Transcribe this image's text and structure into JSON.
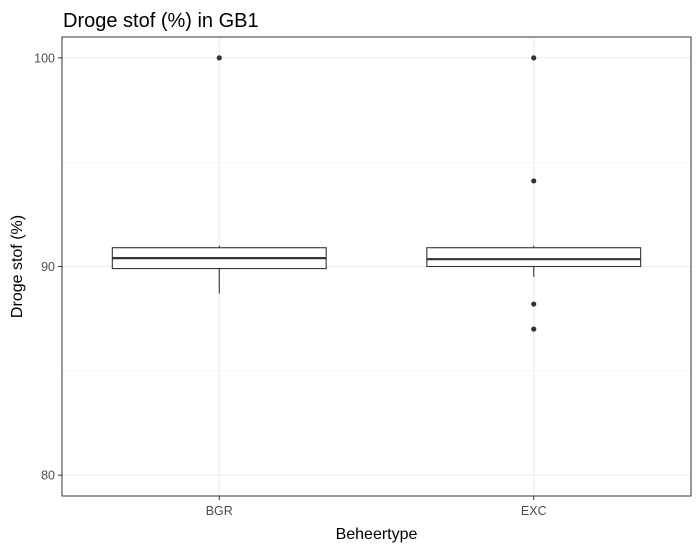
{
  "chart_data": {
    "type": "boxplot",
    "title": "Droge stof (%) in GB1",
    "xlabel": "Beheertype",
    "ylabel": "Droge stof (%)",
    "ylim": [
      79,
      101
    ],
    "yticks": [
      80,
      90,
      100
    ],
    "y_minor_ticks": [
      85,
      95
    ],
    "grid": true,
    "categories": [
      "BGR",
      "EXC"
    ],
    "boxes": [
      {
        "category": "BGR",
        "whisker_low": 88.7,
        "q1": 89.9,
        "median": 90.4,
        "q3": 90.9,
        "whisker_high": 91.0,
        "outliers": [
          100
        ]
      },
      {
        "category": "EXC",
        "whisker_low": 89.5,
        "q1": 90.0,
        "median": 90.35,
        "q3": 90.9,
        "whisker_high": 91.0,
        "outliers": [
          100,
          94.1,
          88.2,
          87.0
        ]
      }
    ]
  }
}
